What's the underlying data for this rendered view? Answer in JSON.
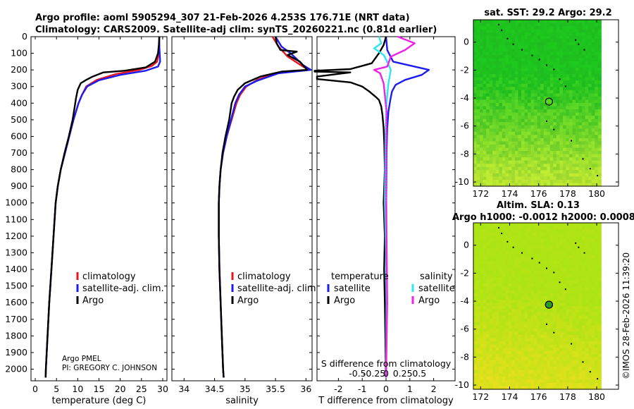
{
  "title_line1": "Argo profile: aoml 5905294_307 21-Feb-2026 4.253S 176.71E (NRT data)",
  "title_line2": "Climatology: CARS2009. Satellite-adj clim: synTS_20260221.nc (0.81d earlier)",
  "credit": "©IMOS 28-Feb-2026 11:39:20",
  "colors": {
    "climatology": "#e8141e",
    "satellite_adj": "#1c1cf0",
    "argo": "#000000",
    "s_satellite": "#2ee6f2",
    "s_argo": "#f020e6"
  },
  "chart_data": [
    {
      "type": "line",
      "id": "temperature",
      "xlabel": "temperature (deg C)",
      "xlim": [
        -1,
        31
      ],
      "xticks": [
        0,
        5,
        10,
        15,
        20,
        25,
        30
      ],
      "ylim": [
        2070,
        0
      ],
      "yticks": [
        0,
        100,
        200,
        300,
        400,
        500,
        600,
        700,
        800,
        900,
        1000,
        1100,
        1200,
        1300,
        1400,
        1500,
        1600,
        1700,
        1800,
        1900,
        2000
      ],
      "annotation_lines": [
        "Argo PMEL",
        "PI: GREGORY C. JOHNSON"
      ],
      "legend": [
        "climatology",
        "satellite-adj. clim.",
        "Argo"
      ],
      "series": [
        {
          "name": "climatology",
          "color": "#e8141e",
          "points": [
            [
              29.2,
              0
            ],
            [
              29.2,
              60
            ],
            [
              29.1,
              100
            ],
            [
              28.7,
              150
            ],
            [
              27.5,
              175
            ],
            [
              24.5,
              200
            ],
            [
              19,
              225
            ],
            [
              14.5,
              260
            ],
            [
              12,
              300
            ],
            [
              11,
              350
            ],
            [
              10.2,
              400
            ],
            [
              9,
              500
            ],
            [
              8,
              600
            ],
            [
              7,
              700
            ],
            [
              6,
              800
            ],
            [
              5.3,
              900
            ],
            [
              4.8,
              1000
            ],
            [
              4.3,
              1200
            ],
            [
              3.8,
              1400
            ],
            [
              3.3,
              1600
            ],
            [
              2.9,
              1800
            ],
            [
              2.5,
              2000
            ],
            [
              2.45,
              2050
            ]
          ]
        },
        {
          "name": "satellite-adj. clim.",
          "color": "#1c1cf0",
          "points": [
            [
              29.2,
              0
            ],
            [
              29.2,
              50
            ],
            [
              29.3,
              100
            ],
            [
              29.4,
              150
            ],
            [
              28.9,
              180
            ],
            [
              26,
              205
            ],
            [
              20,
              230
            ],
            [
              15,
              262
            ],
            [
              12.2,
              300
            ],
            [
              11,
              350
            ],
            [
              10.2,
              400
            ],
            [
              9,
              500
            ],
            [
              8,
              600
            ],
            [
              7,
              700
            ],
            [
              6,
              800
            ],
            [
              5.3,
              900
            ],
            [
              4.8,
              1000
            ],
            [
              4.3,
              1200
            ],
            [
              3.8,
              1400
            ],
            [
              3.3,
              1600
            ],
            [
              2.9,
              1800
            ],
            [
              2.5,
              2000
            ],
            [
              2.45,
              2050
            ]
          ]
        },
        {
          "name": "Argo",
          "color": "#000000",
          "points": [
            [
              29.2,
              0
            ],
            [
              29.1,
              50
            ],
            [
              28.9,
              100
            ],
            [
              28.2,
              150
            ],
            [
              26,
              185
            ],
            [
              21,
              205
            ],
            [
              16,
              215
            ],
            [
              13.5,
              240
            ],
            [
              12,
              260
            ],
            [
              10.7,
              280
            ],
            [
              10,
              320
            ],
            [
              9.6,
              370
            ],
            [
              9.3,
              420
            ],
            [
              8.8,
              500
            ],
            [
              7.9,
              600
            ],
            [
              6.9,
              700
            ],
            [
              6,
              800
            ],
            [
              5.3,
              900
            ],
            [
              4.8,
              1000
            ],
            [
              4.3,
              1200
            ],
            [
              3.8,
              1400
            ],
            [
              3.3,
              1600
            ],
            [
              2.9,
              1800
            ],
            [
              2.5,
              2000
            ],
            [
              2.45,
              2050
            ]
          ]
        }
      ]
    },
    {
      "type": "line",
      "id": "salinity",
      "xlabel": "salinity",
      "xlim": [
        33.8,
        36.1
      ],
      "xticks": [
        34,
        34.5,
        35,
        35.5,
        36
      ],
      "ylim": [
        2070,
        0
      ],
      "legend": [
        "climatology",
        "satellite-adj. clim.",
        "Argo"
      ],
      "series": [
        {
          "name": "climatology",
          "color": "#e8141e",
          "points": [
            [
              35.45,
              0
            ],
            [
              35.55,
              60
            ],
            [
              35.7,
              120
            ],
            [
              35.95,
              180
            ],
            [
              36.05,
              200
            ],
            [
              35.5,
              220
            ],
            [
              35.2,
              260
            ],
            [
              35.02,
              300
            ],
            [
              34.92,
              350
            ],
            [
              34.86,
              400
            ],
            [
              34.78,
              500
            ],
            [
              34.7,
              600
            ],
            [
              34.64,
              700
            ],
            [
              34.6,
              800
            ],
            [
              34.58,
              900
            ],
            [
              34.57,
              1000
            ],
            [
              34.57,
              1200
            ],
            [
              34.58,
              1400
            ],
            [
              34.6,
              1600
            ],
            [
              34.62,
              1800
            ],
            [
              34.64,
              2000
            ],
            [
              34.65,
              2050
            ]
          ]
        },
        {
          "name": "satellite-adj. clim.",
          "color": "#1c1cf0",
          "points": [
            [
              35.5,
              0
            ],
            [
              35.6,
              60
            ],
            [
              35.75,
              100
            ],
            [
              35.95,
              170
            ],
            [
              36.08,
              200
            ],
            [
              35.55,
              220
            ],
            [
              35.2,
              265
            ],
            [
              35.0,
              300
            ],
            [
              34.9,
              350
            ],
            [
              34.84,
              400
            ],
            [
              34.77,
              500
            ],
            [
              34.7,
              600
            ],
            [
              34.64,
              700
            ],
            [
              34.6,
              800
            ],
            [
              34.58,
              900
            ],
            [
              34.57,
              1000
            ],
            [
              34.57,
              1200
            ],
            [
              34.58,
              1400
            ],
            [
              34.6,
              1600
            ],
            [
              34.62,
              1800
            ],
            [
              34.64,
              2000
            ],
            [
              34.65,
              2050
            ]
          ]
        },
        {
          "name": "Argo",
          "color": "#000000",
          "points": [
            [
              35.5,
              0
            ],
            [
              35.52,
              40
            ],
            [
              35.58,
              80
            ],
            [
              35.85,
              90
            ],
            [
              35.7,
              110
            ],
            [
              35.9,
              150
            ],
            [
              36.02,
              200
            ],
            [
              35.6,
              210
            ],
            [
              35.25,
              240
            ],
            [
              35.0,
              280
            ],
            [
              34.88,
              320
            ],
            [
              34.82,
              360
            ],
            [
              34.78,
              400
            ],
            [
              34.74,
              500
            ],
            [
              34.68,
              600
            ],
            [
              34.63,
              700
            ],
            [
              34.6,
              800
            ],
            [
              34.58,
              900
            ],
            [
              34.57,
              1000
            ],
            [
              34.57,
              1200
            ],
            [
              34.58,
              1400
            ],
            [
              34.6,
              1600
            ],
            [
              34.62,
              1800
            ],
            [
              34.64,
              2000
            ],
            [
              34.65,
              2050
            ]
          ]
        }
      ]
    },
    {
      "type": "line",
      "id": "difference",
      "xlabel": "T difference from climatology",
      "xlabel_top": "S difference from climatology",
      "xlim": [
        -2.9,
        2.9
      ],
      "xticks": [
        -2,
        -1,
        0,
        1,
        2
      ],
      "s_ticks": [
        {
          "label": "-0.5",
          "t": -1.2
        },
        {
          "label": "-0.25",
          "t": -0.5
        },
        {
          "label": "0",
          "t": 0
        },
        {
          "label": "0.25",
          "t": 0.7
        },
        {
          "label": "0.5",
          "t": 1.4
        }
      ],
      "ylim": [
        2070,
        0
      ],
      "legend_t_title": "temperature",
      "legend_s_title": "salinity",
      "legend_t": [
        "satellite",
        "Argo"
      ],
      "legend_s": [
        "satellite",
        "Argo"
      ],
      "series": [
        {
          "name": "T satellite",
          "color": "#1c1cf0",
          "points": [
            [
              0,
              0
            ],
            [
              0.05,
              80
            ],
            [
              0.3,
              150
            ],
            [
              1.8,
              200
            ],
            [
              1.5,
              230
            ],
            [
              0.8,
              260
            ],
            [
              0.4,
              290
            ],
            [
              0.25,
              330
            ],
            [
              0.18,
              380
            ],
            [
              0.1,
              450
            ],
            [
              0.05,
              550
            ],
            [
              0.02,
              700
            ],
            [
              0.01,
              1000
            ],
            [
              0,
              2050
            ]
          ]
        },
        {
          "name": "T Argo",
          "color": "#000000",
          "points": [
            [
              0,
              0
            ],
            [
              -0.1,
              50
            ],
            [
              -0.3,
              100
            ],
            [
              -0.6,
              160
            ],
            [
              -1.5,
              195
            ],
            [
              -3.0,
              205
            ],
            [
              -3.0,
              210
            ],
            [
              -1.5,
              215
            ],
            [
              -2.9,
              240
            ],
            [
              -2.9,
              255
            ],
            [
              -1.5,
              275
            ],
            [
              -1.0,
              300
            ],
            [
              -0.7,
              330
            ],
            [
              -0.45,
              360
            ],
            [
              -0.3,
              380
            ],
            [
              -0.2,
              420
            ],
            [
              -0.15,
              470
            ],
            [
              -0.1,
              550
            ],
            [
              -0.07,
              650
            ],
            [
              -0.05,
              800
            ],
            [
              -0.1,
              1000
            ],
            [
              -0.05,
              1200
            ],
            [
              -0.08,
              1400
            ],
            [
              -0.05,
              1600
            ],
            [
              0,
              2050
            ]
          ]
        },
        {
          "name": "S satellite",
          "color": "#2ee6f2",
          "points": [
            [
              -0.3,
              0
            ],
            [
              -0.2,
              40
            ],
            [
              -0.5,
              70
            ],
            [
              -0.1,
              110
            ],
            [
              0.05,
              150
            ],
            [
              0.2,
              200
            ],
            [
              0.1,
              280
            ],
            [
              0.02,
              400
            ],
            [
              -0.02,
              600
            ],
            [
              -0.05,
              1000
            ],
            [
              0.0,
              1300
            ],
            [
              0.02,
              1600
            ],
            [
              0,
              2050
            ]
          ]
        },
        {
          "name": "S Argo",
          "color": "#f020e6",
          "points": [
            [
              0.5,
              0
            ],
            [
              1.2,
              40
            ],
            [
              0.8,
              80
            ],
            [
              0.2,
              120
            ],
            [
              0.05,
              180
            ],
            [
              -0.5,
              200
            ],
            [
              -0.25,
              220
            ],
            [
              -0.1,
              280
            ],
            [
              0.02,
              450
            ],
            [
              0.0,
              800
            ],
            [
              0.02,
              1200
            ],
            [
              0.05,
              1600
            ],
            [
              0,
              2050
            ]
          ]
        }
      ]
    },
    {
      "type": "heatmap",
      "id": "sst_map",
      "title": "sat. SST: 29.2 Argo: 29.2",
      "xticks": [
        172,
        174,
        176,
        178,
        180
      ],
      "yticks": [
        0,
        -2,
        -4,
        -6,
        -8,
        -10
      ],
      "xlim": [
        171.5,
        181.5
      ],
      "ylim": [
        -10.3,
        1.6
      ],
      "marker": {
        "lon": 176.71,
        "lat": -4.253
      }
    },
    {
      "type": "heatmap",
      "id": "sla_map",
      "title_line1": "Altim. SLA: 0.13",
      "title_line2": "Argo h1000: -0.0012 h2000: 0.0008",
      "xticks": [
        172,
        174,
        176,
        178,
        180
      ],
      "yticks": [
        0,
        -2,
        -4,
        -6,
        -8,
        -10
      ],
      "xlim": [
        171.5,
        181.5
      ],
      "ylim": [
        -10.3,
        1.6
      ],
      "marker": {
        "lon": 176.71,
        "lat": -4.253
      }
    }
  ]
}
